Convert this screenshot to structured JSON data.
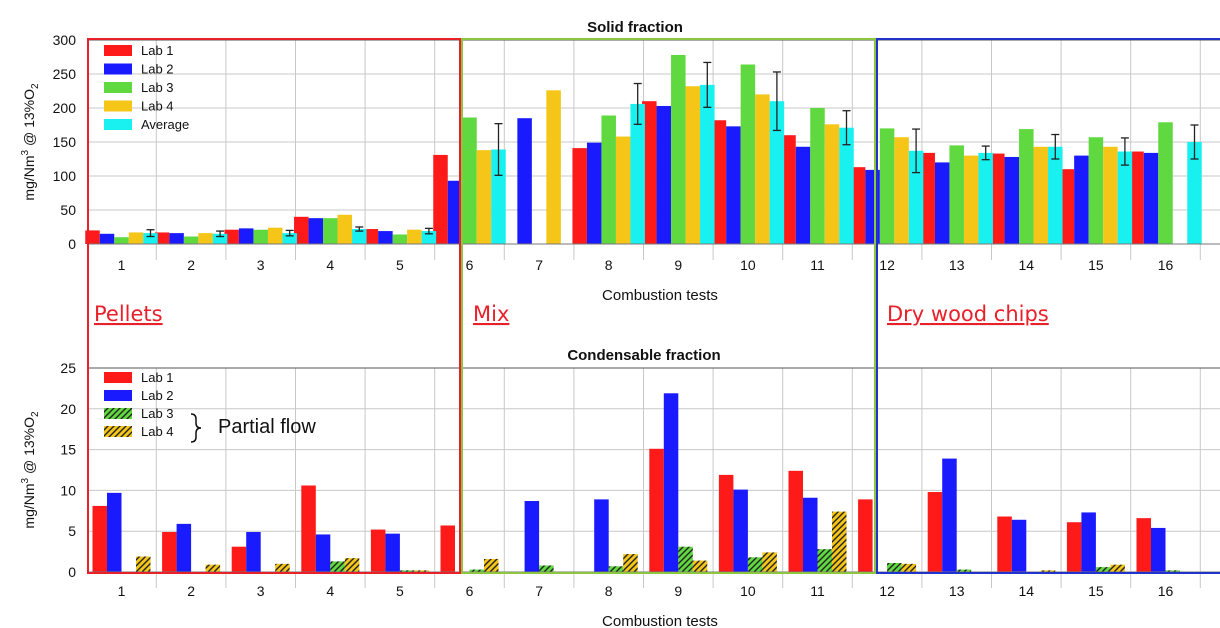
{
  "figure": {
    "group_labels": [
      "Pellets",
      "Mix",
      "Dry wood chips"
    ],
    "group_label_color": "#e8202a",
    "group_box_colors": [
      "#e8202a",
      "#8cc63f",
      "#2233cc"
    ],
    "bracket_label": "Partial flow"
  },
  "colors": {
    "lab1": "#ff1a1a",
    "lab2": "#1a1aff",
    "lab3": "#5fd93f",
    "lab4": "#f5c518",
    "average": "#19f0f0",
    "hatch_line": "#222222",
    "grid": "#c8c8c8"
  },
  "chart_data": [
    {
      "id": "solid",
      "type": "bar",
      "title": "Solid fraction",
      "xlabel": "Combustion tests",
      "ylabel_main": "mg/Nm",
      "ylabel_sup1": "3",
      "ylabel_mid": " @ 13%O",
      "ylabel_sub": "2",
      "ylim": [
        0,
        300
      ],
      "yticks": [
        0,
        50,
        100,
        150,
        200,
        250,
        300
      ],
      "grid": true,
      "legend_position": "top-left",
      "categories": [
        "1",
        "2",
        "3",
        "4",
        "5",
        "6",
        "7",
        "8",
        "9",
        "10",
        "11",
        "12",
        "13",
        "14",
        "15",
        "16"
      ],
      "series": [
        {
          "name": "Lab 1",
          "color": "#ff1a1a",
          "hatch": false,
          "values": [
            20,
            17,
            21,
            40,
            22,
            131,
            null,
            141,
            210,
            182,
            160,
            113,
            134,
            133,
            110,
            136
          ]
        },
        {
          "name": "Lab 2",
          "color": "#1a1aff",
          "hatch": false,
          "values": [
            15,
            16,
            23,
            38,
            19,
            93,
            185,
            149,
            203,
            173,
            143,
            109,
            120,
            128,
            130,
            134
          ]
        },
        {
          "name": "Lab 3",
          "color": "#5fd93f",
          "hatch": false,
          "values": [
            10,
            11,
            21,
            38,
            14,
            186,
            null,
            189,
            278,
            264,
            200,
            170,
            145,
            169,
            157,
            179
          ]
        },
        {
          "name": "Lab 4",
          "color": "#f5c518",
          "hatch": false,
          "values": [
            17,
            16,
            24,
            43,
            21,
            138,
            226,
            158,
            232,
            220,
            176,
            157,
            130,
            143,
            143,
            null
          ]
        },
        {
          "name": "Average",
          "color": "#19f0f0",
          "hatch": false,
          "values": [
            16,
            15,
            16,
            22,
            19,
            139,
            null,
            206,
            234,
            210,
            171,
            137,
            134,
            143,
            136,
            150
          ],
          "errors": [
            5,
            4,
            4,
            3,
            4,
            38,
            null,
            30,
            33,
            43,
            25,
            32,
            10,
            18,
            20,
            25
          ]
        }
      ]
    },
    {
      "id": "condensable",
      "type": "bar",
      "title": "Condensable fraction",
      "xlabel": "Combustion tests",
      "ylabel_main": "mg/Nm",
      "ylabel_sup1": "3",
      "ylabel_mid": " @ 13%O",
      "ylabel_sub": "2",
      "ylim": [
        0,
        25
      ],
      "yticks": [
        0,
        5,
        10,
        15,
        20,
        25
      ],
      "grid": true,
      "legend_position": "top-left",
      "categories": [
        "1",
        "2",
        "3",
        "4",
        "5",
        "6",
        "7",
        "8",
        "9",
        "10",
        "11",
        "12",
        "13",
        "14",
        "15",
        "16"
      ],
      "series": [
        {
          "name": "Lab 1",
          "color": "#ff1a1a",
          "hatch": false,
          "values": [
            8.1,
            4.9,
            3.1,
            10.6,
            5.2,
            5.7,
            null,
            null,
            15.1,
            11.9,
            12.4,
            8.9,
            9.8,
            6.8,
            6.1,
            6.6
          ]
        },
        {
          "name": "Lab 2",
          "color": "#1a1aff",
          "hatch": false,
          "values": [
            9.7,
            5.9,
            4.9,
            4.6,
            4.7,
            null,
            8.7,
            8.9,
            21.9,
            10.1,
            9.1,
            null,
            13.9,
            6.4,
            7.3,
            5.4
          ]
        },
        {
          "name": "Lab 3",
          "color": "#5fd93f",
          "hatch": true,
          "values": [
            null,
            null,
            null,
            1.3,
            0.2,
            0.3,
            0.8,
            0.7,
            3.1,
            1.8,
            2.8,
            1.1,
            0.3,
            null,
            0.6,
            0.2
          ]
        },
        {
          "name": "Lab 4",
          "color": "#f5c518",
          "hatch": true,
          "values": [
            1.9,
            0.9,
            1.0,
            1.7,
            0.2,
            1.6,
            null,
            2.2,
            1.4,
            2.4,
            7.4,
            1.0,
            null,
            0.2,
            0.9,
            null
          ]
        }
      ]
    }
  ]
}
